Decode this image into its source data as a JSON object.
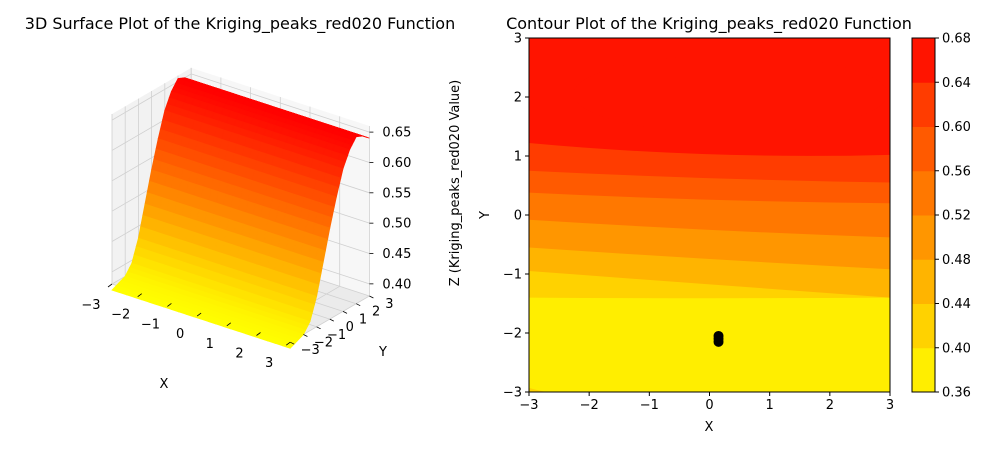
{
  "chart_data": [
    {
      "type": "surface",
      "title": "3D Surface Plot of the Kriging_peaks_red020 Function",
      "xlabel": "X",
      "ylabel": "Y",
      "zlabel": "Z (Kriging_peaks_red020 Value)",
      "x_ticks": [
        -3,
        -2,
        -1,
        0,
        1,
        2,
        3
      ],
      "y_ticks": [
        -3,
        -2,
        -1,
        0,
        1,
        2,
        3
      ],
      "z_ticks": [
        0.4,
        0.45,
        0.5,
        0.55,
        0.6,
        0.65
      ],
      "x_tick_labels": [
        "−3",
        "−2",
        "−1",
        "0",
        "1",
        "2",
        "3"
      ],
      "y_tick_labels": [
        "−3",
        "−2",
        "−1",
        "0",
        "1",
        "2",
        "3"
      ],
      "z_tick_labels": [
        "0.40",
        "0.45",
        "0.50",
        "0.55",
        "0.60",
        "0.65"
      ],
      "xlim": [
        -3,
        3
      ],
      "ylim": [
        -3,
        3
      ],
      "zlim": [
        0.38,
        0.66
      ],
      "colormap": "autumn_r",
      "grid": true,
      "surface_profile_y": [
        -3,
        -2,
        -1.5,
        -1,
        -0.5,
        0,
        0.5,
        1,
        1.5,
        2,
        2.5,
        3
      ],
      "surface_profile_z": [
        0.37,
        0.38,
        0.395,
        0.43,
        0.48,
        0.53,
        0.575,
        0.615,
        0.64,
        0.655,
        0.65,
        0.64
      ]
    },
    {
      "type": "contour",
      "title": "Contour Plot of the Kriging_peaks_red020 Function",
      "xlabel": "X",
      "ylabel": "Y",
      "xlim": [
        -3,
        3
      ],
      "ylim": [
        -3,
        3
      ],
      "x_ticks": [
        -3,
        -2,
        -1,
        0,
        1,
        2,
        3
      ],
      "y_ticks": [
        -3,
        -2,
        -1,
        0,
        1,
        2,
        3
      ],
      "x_tick_labels": [
        "−3",
        "−2",
        "−1",
        "0",
        "1",
        "2",
        "3"
      ],
      "y_tick_labels": [
        "−3",
        "−2",
        "−1",
        "0",
        "1",
        "2",
        "3"
      ],
      "levels": [
        0.36,
        0.4,
        0.44,
        0.48,
        0.52,
        0.56,
        0.6,
        0.64,
        0.68
      ],
      "level_labels": [
        "0.36",
        "0.40",
        "0.44",
        "0.48",
        "0.52",
        "0.56",
        "0.60",
        "0.64",
        "0.68"
      ],
      "level_colors": [
        "#ffee00",
        "#ffd200",
        "#ffb400",
        "#ff9600",
        "#ff7800",
        "#ff5a00",
        "#ff3c00",
        "#ff1400"
      ],
      "colormap": "autumn_r",
      "sample_points": [
        {
          "x": 0.15,
          "y": -2.05
        },
        {
          "x": 0.15,
          "y": -2.1
        },
        {
          "x": 0.15,
          "y": -2.15
        }
      ]
    }
  ]
}
